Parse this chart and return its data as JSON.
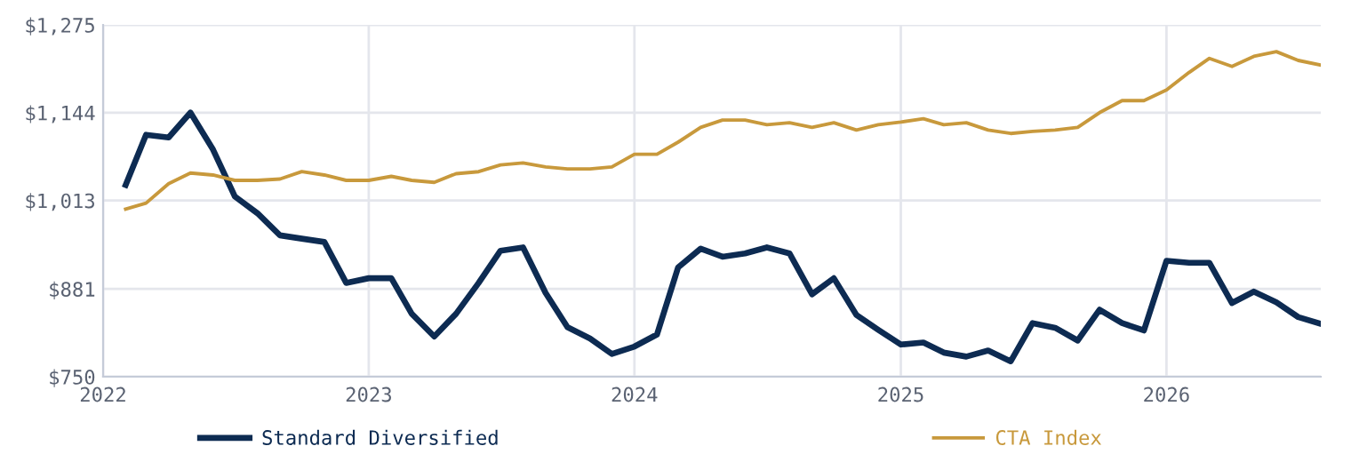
{
  "chart_data": {
    "type": "line",
    "x": [
      "2022-02",
      "2022-03",
      "2022-04",
      "2022-05",
      "2022-06",
      "2022-07",
      "2022-08",
      "2022-09",
      "2022-10",
      "2022-11",
      "2022-12",
      "2023-01",
      "2023-02",
      "2023-03",
      "2023-04",
      "2023-05",
      "2023-06",
      "2023-07",
      "2023-08",
      "2023-09",
      "2023-10",
      "2023-11",
      "2023-12",
      "2024-01",
      "2024-02",
      "2024-03",
      "2024-04",
      "2024-05",
      "2024-06",
      "2024-07",
      "2024-08",
      "2024-09",
      "2024-10",
      "2024-11",
      "2024-12",
      "2025-01",
      "2025-02",
      "2025-03",
      "2025-04",
      "2025-05",
      "2025-06",
      "2025-07",
      "2025-08",
      "2025-09",
      "2025-10",
      "2025-11",
      "2025-12",
      "2026-01",
      "2026-02",
      "2026-03",
      "2026-04",
      "2026-05",
      "2026-06",
      "2026-07",
      "2026-08"
    ],
    "series": [
      {
        "name": "Standard Diversified",
        "color": "#0d2b52",
        "values": [
          1036,
          1111,
          1107,
          1144,
          1089,
          1019,
          994,
          961,
          956,
          951,
          890,
          897,
          897,
          844,
          810,
          844,
          890,
          938,
          943,
          875,
          824,
          807,
          784,
          795,
          813,
          913,
          941,
          929,
          934,
          943,
          934,
          873,
          897,
          842,
          820,
          798,
          801,
          786,
          780,
          789,
          773,
          830,
          823,
          804,
          850,
          830,
          819,
          923,
          920,
          920,
          860,
          877,
          861,
          839,
          829
        ]
      },
      {
        "name": "CTA Index",
        "color": "#c8993c",
        "values": [
          1000,
          1009,
          1038,
          1054,
          1051,
          1043,
          1043,
          1045,
          1056,
          1051,
          1043,
          1043,
          1049,
          1043,
          1040,
          1053,
          1056,
          1066,
          1069,
          1063,
          1060,
          1060,
          1063,
          1082,
          1082,
          1100,
          1122,
          1133,
          1133,
          1126,
          1129,
          1122,
          1129,
          1118,
          1126,
          1130,
          1135,
          1126,
          1129,
          1118,
          1113,
          1116,
          1118,
          1122,
          1144,
          1162,
          1162,
          1178,
          1204,
          1225,
          1213,
          1228,
          1235,
          1222,
          1215
        ]
      }
    ],
    "xlim": [
      "2022-01",
      "2026-08"
    ],
    "xticks": [
      "2022",
      "2023",
      "2024",
      "2025",
      "2026"
    ],
    "ylim": [
      750,
      1275
    ],
    "yticks": [
      {
        "value": 750,
        "label": "$750"
      },
      {
        "value": 881,
        "label": "$881"
      },
      {
        "value": 1013,
        "label": "$1,013"
      },
      {
        "value": 1144,
        "label": "$1,144"
      },
      {
        "value": 1275,
        "label": "$1,275"
      }
    ],
    "grid": true,
    "legend": "bottom",
    "marker": "none",
    "line_style": "solid"
  }
}
